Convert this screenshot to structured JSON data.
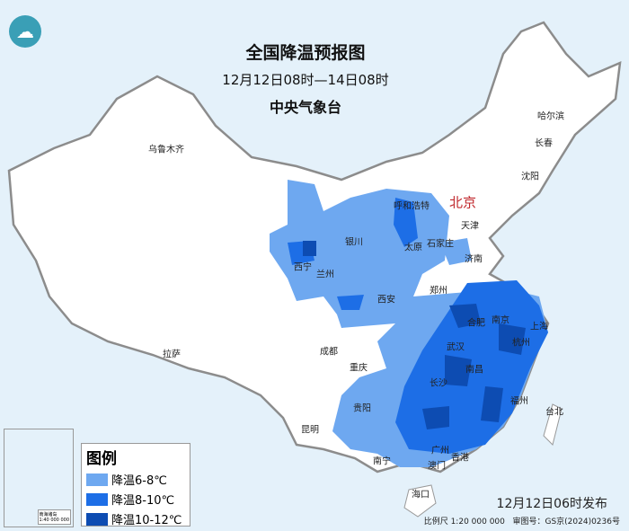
{
  "header": {
    "title": "全国降温预报图",
    "period": "12月12日08时—14日08时",
    "issuer": "中央气象台"
  },
  "logo": {
    "icon": "cma-logo-icon"
  },
  "colors": {
    "sea": "#e4f1fa",
    "land": "#ffffff",
    "border": "#8c8c8c",
    "level_6_8": "#6ea8f0",
    "level_8_10": "#1d6ee6",
    "level_10_12": "#0d4cb2",
    "capital": "#c0282d"
  },
  "cities": [
    {
      "name": "乌鲁木齐"
    },
    {
      "name": "哈尔滨"
    },
    {
      "name": "长春"
    },
    {
      "name": "沈阳"
    },
    {
      "name": "北京",
      "capital": true
    },
    {
      "name": "天津"
    },
    {
      "name": "呼和浩特"
    },
    {
      "name": "石家庄"
    },
    {
      "name": "太原"
    },
    {
      "name": "济南"
    },
    {
      "name": "银川"
    },
    {
      "name": "西宁"
    },
    {
      "name": "兰州"
    },
    {
      "name": "郑州"
    },
    {
      "name": "西安"
    },
    {
      "name": "南京"
    },
    {
      "name": "合肥"
    },
    {
      "name": "上海"
    },
    {
      "name": "杭州"
    },
    {
      "name": "武汉"
    },
    {
      "name": "成都"
    },
    {
      "name": "重庆"
    },
    {
      "name": "南昌"
    },
    {
      "name": "长沙"
    },
    {
      "name": "拉萨"
    },
    {
      "name": "福州"
    },
    {
      "name": "台北"
    },
    {
      "name": "贵阳"
    },
    {
      "name": "昆明"
    },
    {
      "name": "南宁"
    },
    {
      "name": "广州"
    },
    {
      "name": "香港"
    },
    {
      "name": "澳门"
    },
    {
      "name": "海口"
    }
  ],
  "legend": {
    "title": "图例",
    "items": [
      {
        "label": "降温6-8℃",
        "color": "#6ea8f0"
      },
      {
        "label": "降温8-10℃",
        "color": "#1d6ee6"
      },
      {
        "label": "降温10-12℃",
        "color": "#0d4cb2"
      }
    ]
  },
  "inset": {
    "caption": "南海诸岛",
    "scale": "1:40 000 000"
  },
  "footer": {
    "published": "12月12日06时发布",
    "scale": "比例尺 1:20 000 000",
    "review": "审图号：GS京(2024)0236号"
  }
}
